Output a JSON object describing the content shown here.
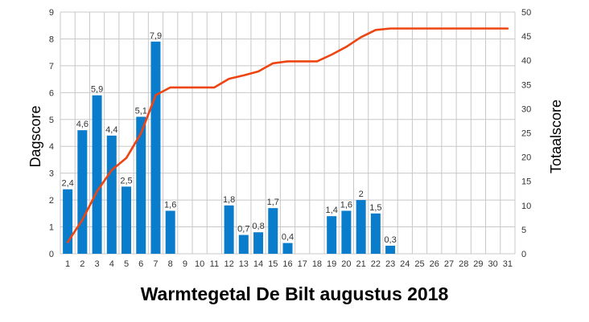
{
  "chart_data": {
    "type": "bar",
    "title": "Warmtegetal De Bilt augustus 2018",
    "xlabel": "",
    "ylabel": "Dagscore",
    "y2label": "Totaalscore",
    "categories": [
      "1",
      "2",
      "3",
      "4",
      "5",
      "6",
      "7",
      "8",
      "9",
      "10",
      "11",
      "12",
      "13",
      "14",
      "15",
      "16",
      "17",
      "18",
      "19",
      "20",
      "21",
      "22",
      "23",
      "24",
      "25",
      "26",
      "27",
      "28",
      "29",
      "30",
      "31"
    ],
    "ylim": [
      0,
      9
    ],
    "yticks": [
      "0",
      "1",
      "2",
      "3",
      "4",
      "5",
      "6",
      "7",
      "8",
      "9"
    ],
    "y2lim": [
      0,
      50
    ],
    "y2ticks": [
      "0",
      "5",
      "10",
      "15",
      "20",
      "25",
      "30",
      "35",
      "40",
      "45",
      "50"
    ],
    "grid": true,
    "series": [
      {
        "name": "Dagscore",
        "type": "bar",
        "axis": "left",
        "color": "#0a7ccc",
        "values": [
          2.4,
          4.6,
          5.9,
          4.4,
          2.5,
          5.1,
          7.9,
          1.6,
          0,
          0,
          0,
          1.8,
          0.7,
          0.8,
          1.7,
          0.4,
          0,
          0,
          1.4,
          1.6,
          2,
          1.5,
          0.3,
          0,
          0,
          0,
          0,
          0,
          0,
          0,
          0
        ],
        "labels": [
          "2,4",
          "4,6",
          "5,9",
          "4,4",
          "2,5",
          "5,1",
          "7,9",
          "1,6",
          "",
          "",
          "",
          "1,8",
          "0,7",
          "0,8",
          "1,7",
          "0,4",
          "",
          "",
          "1,4",
          "1,6",
          "2",
          "1,5",
          "0,3",
          "",
          "",
          "",
          "",
          "",
          "",
          "",
          ""
        ]
      },
      {
        "name": "Totaalscore",
        "type": "line",
        "axis": "right",
        "color": "#ee4411",
        "values": [
          2.4,
          7.0,
          12.9,
          17.3,
          19.8,
          24.9,
          32.8,
          34.4,
          34.4,
          34.4,
          34.4,
          36.2,
          36.9,
          37.7,
          39.4,
          39.8,
          39.8,
          39.8,
          41.2,
          42.8,
          44.8,
          46.3,
          46.6,
          46.6,
          46.6,
          46.6,
          46.6,
          46.6,
          46.6,
          46.6,
          46.6
        ]
      }
    ]
  }
}
